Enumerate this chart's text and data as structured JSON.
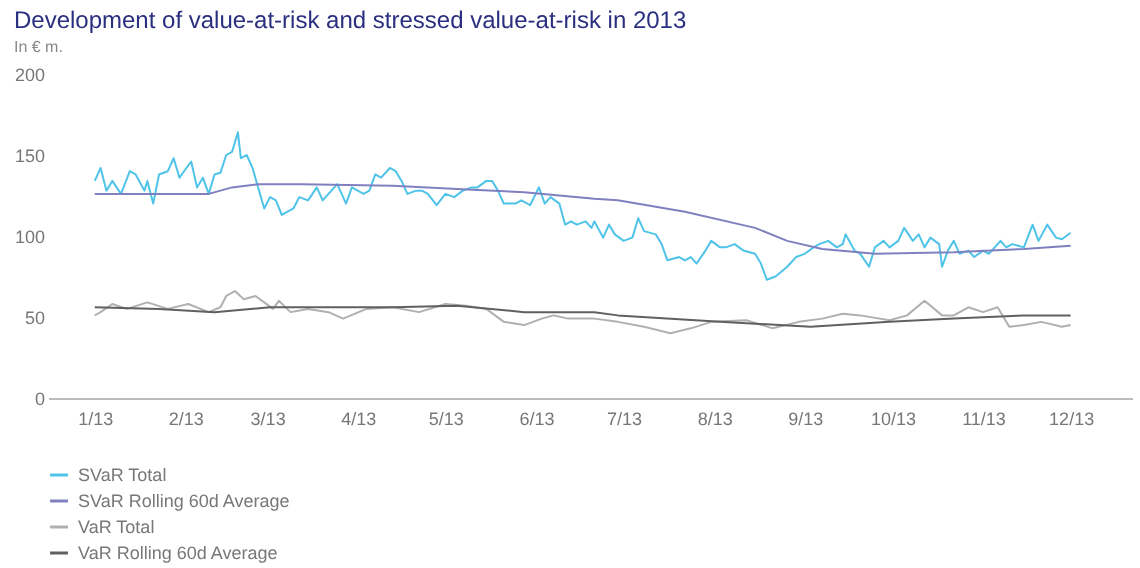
{
  "chart_data": {
    "type": "line",
    "title": "Development of value-at-risk and stressed value-at-risk in 2013",
    "subtitle": "In € m.",
    "xlim": [
      "2012-12-16",
      "2013-12-22"
    ],
    "xticks": [
      {
        "value": "2013-01-01",
        "label": "1/13"
      },
      {
        "value": "2013-02-01",
        "label": "2/13"
      },
      {
        "value": "2013-03-01",
        "label": "3/13"
      },
      {
        "value": "2013-04-01",
        "label": "4/13"
      },
      {
        "value": "2013-05-01",
        "label": "5/13"
      },
      {
        "value": "2013-06-01",
        "label": "6/13"
      },
      {
        "value": "2013-07-01",
        "label": "7/13"
      },
      {
        "value": "2013-08-01",
        "label": "8/13"
      },
      {
        "value": "2013-09-01",
        "label": "9/13"
      },
      {
        "value": "2013-10-01",
        "label": "10/13"
      },
      {
        "value": "2013-11-01",
        "label": "11/13"
      },
      {
        "value": "2013-12-01",
        "label": "12/13"
      }
    ],
    "ylim": [
      0,
      200
    ],
    "yticks": [
      0,
      50,
      100,
      150,
      200
    ],
    "grid": false,
    "legend": "bottom left",
    "marker": "none",
    "line_style": "solid",
    "series": [
      {
        "name": "SVaR Total",
        "color": "#4fc3e8",
        "x": [
          "2013-01-01",
          "2013-01-03",
          "2013-01-05",
          "2013-01-07",
          "2013-01-10",
          "2013-01-13",
          "2013-01-15",
          "2013-01-18",
          "2013-01-19",
          "2013-01-21",
          "2013-01-23",
          "2013-01-26",
          "2013-01-28",
          "2013-01-30",
          "2013-02-03",
          "2013-02-05",
          "2013-02-07",
          "2013-02-09",
          "2013-02-11",
          "2013-02-13",
          "2013-02-15",
          "2013-02-17",
          "2013-02-19",
          "2013-02-20",
          "2013-02-22",
          "2013-02-24",
          "2013-02-28",
          "2013-03-02",
          "2013-03-04",
          "2013-03-06",
          "2013-03-10",
          "2013-03-12",
          "2013-03-15",
          "2013-03-18",
          "2013-03-20",
          "2013-03-22",
          "2013-03-25",
          "2013-03-28",
          "2013-03-30",
          "2013-04-03",
          "2013-04-05",
          "2013-04-07",
          "2013-04-09",
          "2013-04-12",
          "2013-04-14",
          "2013-04-16",
          "2013-04-18",
          "2013-04-21",
          "2013-04-23",
          "2013-04-25",
          "2013-04-28",
          "2013-05-01",
          "2013-05-04",
          "2013-05-07",
          "2013-05-10",
          "2013-05-12",
          "2013-05-15",
          "2013-05-17",
          "2013-05-19",
          "2013-05-21",
          "2013-05-25",
          "2013-05-27",
          "2013-05-30",
          "2013-06-02",
          "2013-06-04",
          "2013-06-06",
          "2013-06-09",
          "2013-06-11",
          "2013-06-13",
          "2013-06-15",
          "2013-06-18",
          "2013-06-20",
          "2013-06-21",
          "2013-06-24",
          "2013-06-26",
          "2013-06-28",
          "2013-07-01",
          "2013-07-04",
          "2013-07-06",
          "2013-07-08",
          "2013-07-12",
          "2013-07-14",
          "2013-07-16",
          "2013-07-20",
          "2013-07-22",
          "2013-07-24",
          "2013-07-26",
          "2013-07-29",
          "2013-07-31",
          "2013-08-03",
          "2013-08-05",
          "2013-08-08",
          "2013-08-11",
          "2013-08-15",
          "2013-08-17",
          "2013-08-19",
          "2013-08-22",
          "2013-08-26",
          "2013-08-29",
          "2013-09-01",
          "2013-09-04",
          "2013-09-06",
          "2013-09-09",
          "2013-09-12",
          "2013-09-14",
          "2013-09-15",
          "2013-09-18",
          "2013-09-20",
          "2013-09-23",
          "2013-09-25",
          "2013-09-28",
          "2013-09-30",
          "2013-10-03",
          "2013-10-05",
          "2013-10-08",
          "2013-10-10",
          "2013-10-12",
          "2013-10-14",
          "2013-10-17",
          "2013-10-18",
          "2013-10-20",
          "2013-10-22",
          "2013-10-24",
          "2013-10-27",
          "2013-10-29",
          "2013-11-01",
          "2013-11-03",
          "2013-11-07",
          "2013-11-09",
          "2013-11-11",
          "2013-11-15",
          "2013-11-18",
          "2013-11-20",
          "2013-11-23",
          "2013-11-26",
          "2013-11-28",
          "2013-12-01"
        ],
        "values": [
          134,
          142,
          128,
          134,
          126,
          140,
          138,
          128,
          134,
          120,
          138,
          140,
          148,
          136,
          146,
          130,
          136,
          126,
          138,
          139,
          150,
          152,
          164,
          148,
          150,
          142,
          117,
          124,
          122,
          113,
          117,
          124,
          122,
          130,
          122,
          126,
          132,
          120,
          130,
          126,
          128,
          138,
          136,
          142,
          140,
          134,
          126,
          128,
          128,
          126,
          119,
          126,
          124,
          128,
          130,
          130,
          134,
          134,
          128,
          120,
          120,
          122,
          119,
          130,
          120,
          124,
          120,
          107,
          109,
          107,
          109,
          105,
          109,
          99,
          107,
          101,
          97,
          99,
          111,
          103,
          101,
          95,
          85,
          87,
          85,
          87,
          83,
          91,
          97,
          93,
          93,
          95,
          91,
          89,
          83,
          73,
          75,
          81,
          87,
          89,
          93,
          95,
          97,
          93,
          95,
          101,
          91,
          89,
          81,
          93,
          97,
          93,
          97,
          105,
          97,
          101,
          93,
          99,
          95,
          81,
          91,
          97,
          89,
          91,
          87,
          91,
          89,
          97,
          93,
          95,
          93,
          107,
          97,
          107,
          99,
          98,
          102
        ]
      },
      {
        "name": "SVaR Rolling 60d Average",
        "color": "#8080c0",
        "x": [
          "2013-01-01",
          "2013-02-09",
          "2013-02-17",
          "2013-02-26",
          "2013-03-13",
          "2013-04-13",
          "2013-05-05",
          "2013-05-28",
          "2013-06-21",
          "2013-06-29",
          "2013-07-22",
          "2013-08-15",
          "2013-08-26",
          "2013-09-07",
          "2013-09-25",
          "2013-10-22",
          "2013-11-15",
          "2013-12-01"
        ],
        "values": [
          126,
          126,
          130,
          132,
          132,
          131,
          129,
          127,
          123,
          122,
          115,
          105,
          97,
          92,
          89,
          90,
          92,
          94
        ]
      },
      {
        "name": "VaR Total",
        "color": "#b0b0b0",
        "x": [
          "2013-01-01",
          "2013-01-03",
          "2013-01-07",
          "2013-01-12",
          "2013-01-19",
          "2013-01-26",
          "2013-02-02",
          "2013-02-09",
          "2013-02-13",
          "2013-02-15",
          "2013-02-18",
          "2013-02-21",
          "2013-02-25",
          "2013-02-28",
          "2013-03-03",
          "2013-03-05",
          "2013-03-09",
          "2013-03-15",
          "2013-03-22",
          "2013-03-27",
          "2013-04-04",
          "2013-04-13",
          "2013-04-22",
          "2013-05-01",
          "2013-05-08",
          "2013-05-15",
          "2013-05-21",
          "2013-05-28",
          "2013-06-03",
          "2013-06-07",
          "2013-06-12",
          "2013-06-21",
          "2013-06-29",
          "2013-07-08",
          "2013-07-17",
          "2013-07-24",
          "2013-07-31",
          "2013-08-12",
          "2013-08-21",
          "2013-08-30",
          "2013-09-07",
          "2013-09-14",
          "2013-09-20",
          "2013-09-30",
          "2013-10-06",
          "2013-10-12",
          "2013-10-18",
          "2013-10-22",
          "2013-10-27",
          "2013-11-01",
          "2013-11-06",
          "2013-11-10",
          "2013-11-15",
          "2013-11-21",
          "2013-11-28",
          "2013-12-01"
        ],
        "values": [
          51,
          53,
          58,
          55,
          59,
          55,
          58,
          53,
          56,
          63,
          66,
          61,
          63,
          59,
          55,
          60,
          53,
          55,
          53,
          49,
          55,
          56,
          53,
          58,
          57,
          55,
          47,
          45,
          49,
          51,
          49,
          49,
          47,
          44,
          40,
          43,
          47,
          48,
          43,
          47,
          49,
          52,
          51,
          48,
          51,
          60,
          51,
          51,
          56,
          53,
          56,
          44,
          45,
          47,
          44,
          45
        ]
      },
      {
        "name": "VaR Rolling 60d Average",
        "color": "#606060",
        "x": [
          "2013-01-01",
          "2013-01-23",
          "2013-02-11",
          "2013-03-02",
          "2013-04-13",
          "2013-05-05",
          "2013-05-28",
          "2013-06-21",
          "2013-06-29",
          "2013-08-03",
          "2013-09-03",
          "2013-09-30",
          "2013-10-22",
          "2013-11-15",
          "2013-12-01"
        ],
        "values": [
          56,
          55,
          53,
          56,
          56,
          57,
          53,
          53,
          51,
          47,
          44,
          47,
          49,
          51,
          51
        ]
      }
    ]
  }
}
